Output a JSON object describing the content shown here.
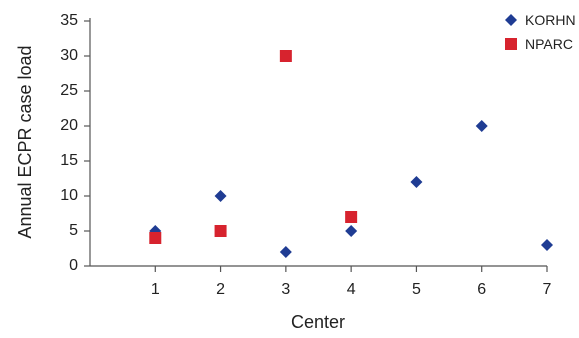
{
  "chart_data": {
    "type": "scatter",
    "title": "",
    "xlabel": "Center",
    "ylabel": "Annual ECPR case load",
    "x_ticks": [
      "1",
      "2",
      "3",
      "4",
      "5",
      "6",
      "7"
    ],
    "y_ticks": [
      "0",
      "5",
      "10",
      "15",
      "20",
      "25",
      "30",
      "35"
    ],
    "xlim": [
      0,
      7
    ],
    "ylim": [
      0,
      35
    ],
    "grid": false,
    "legend_position": "top-right",
    "series": [
      {
        "name": "KORHN",
        "marker": "diamond",
        "color": "#1f3c93",
        "points": [
          {
            "x": 1,
            "y": 5
          },
          {
            "x": 2,
            "y": 10
          },
          {
            "x": 3,
            "y": 2
          },
          {
            "x": 4,
            "y": 5
          },
          {
            "x": 5,
            "y": 12
          },
          {
            "x": 6,
            "y": 20
          },
          {
            "x": 7,
            "y": 3
          }
        ]
      },
      {
        "name": "NPARC",
        "marker": "square",
        "color": "#d7232e",
        "points": [
          {
            "x": 1,
            "y": 4
          },
          {
            "x": 2,
            "y": 5
          },
          {
            "x": 3,
            "y": 30
          },
          {
            "x": 4,
            "y": 7
          }
        ]
      }
    ]
  }
}
